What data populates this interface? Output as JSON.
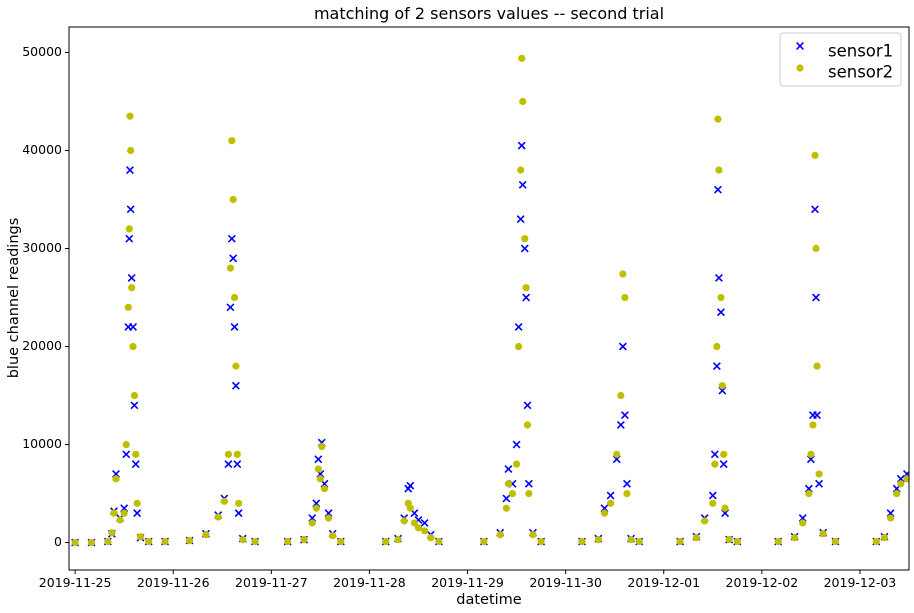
{
  "chart_data": {
    "type": "scatter",
    "title": "matching of 2 sensors values -- second trial",
    "xlabel": "datetime",
    "ylabel": "blue channel readings",
    "xlim": [
      "2019-11-24T22:30",
      "2019-12-03T12:00"
    ],
    "ylim": [
      -2800,
      52600
    ],
    "x_ticks": [
      "2019-11-25",
      "2019-11-26",
      "2019-11-27",
      "2019-11-28",
      "2019-11-29",
      "2019-11-30",
      "2019-12-01",
      "2019-12-02",
      "2019-12-03"
    ],
    "y_ticks": [
      0,
      10000,
      20000,
      30000,
      40000,
      50000
    ],
    "grid": false,
    "legend_position": "top-right",
    "series": [
      {
        "name": "sensor1",
        "marker": "x",
        "color": "#0000ff",
        "points": [
          [
            "2019-11-25T00:00",
            0
          ],
          [
            "2019-11-25T04:00",
            0
          ],
          [
            "2019-11-25T08:00",
            100
          ],
          [
            "2019-11-25T09:00",
            900
          ],
          [
            "2019-11-25T09:30",
            3200
          ],
          [
            "2019-11-25T10:00",
            7000
          ],
          [
            "2019-11-25T11:00",
            2500
          ],
          [
            "2019-11-25T12:00",
            3500
          ],
          [
            "2019-11-25T12:30",
            9000
          ],
          [
            "2019-11-25T13:00",
            22000
          ],
          [
            "2019-11-25T13:15",
            31000
          ],
          [
            "2019-11-25T13:25",
            38000
          ],
          [
            "2019-11-25T13:35",
            34000
          ],
          [
            "2019-11-25T13:50",
            27000
          ],
          [
            "2019-11-25T14:10",
            22000
          ],
          [
            "2019-11-25T14:30",
            14000
          ],
          [
            "2019-11-25T14:50",
            8000
          ],
          [
            "2019-11-25T15:10",
            3000
          ],
          [
            "2019-11-25T16:00",
            500
          ],
          [
            "2019-11-25T18:00",
            100
          ],
          [
            "2019-11-25T22:00",
            100
          ],
          [
            "2019-11-26T04:00",
            200
          ],
          [
            "2019-11-26T08:00",
            900
          ],
          [
            "2019-11-26T11:00",
            2800
          ],
          [
            "2019-11-26T12:30",
            4500
          ],
          [
            "2019-11-26T13:30",
            8000
          ],
          [
            "2019-11-26T14:00",
            24000
          ],
          [
            "2019-11-26T14:20",
            31000
          ],
          [
            "2019-11-26T14:40",
            29000
          ],
          [
            "2019-11-26T15:00",
            22000
          ],
          [
            "2019-11-26T15:20",
            16000
          ],
          [
            "2019-11-26T15:40",
            8000
          ],
          [
            "2019-11-26T16:00",
            3000
          ],
          [
            "2019-11-26T17:00",
            400
          ],
          [
            "2019-11-26T20:00",
            100
          ],
          [
            "2019-11-27T04:00",
            100
          ],
          [
            "2019-11-27T08:00",
            300
          ],
          [
            "2019-11-27T10:00",
            2500
          ],
          [
            "2019-11-27T11:00",
            4000
          ],
          [
            "2019-11-27T11:30",
            8500
          ],
          [
            "2019-11-27T12:00",
            7000
          ],
          [
            "2019-11-27T12:20",
            10200
          ],
          [
            "2019-11-27T13:00",
            6000
          ],
          [
            "2019-11-27T14:00",
            3000
          ],
          [
            "2019-11-27T15:00",
            900
          ],
          [
            "2019-11-27T17:00",
            100
          ],
          [
            "2019-11-28T04:00",
            100
          ],
          [
            "2019-11-28T07:00",
            400
          ],
          [
            "2019-11-28T08:30",
            2500
          ],
          [
            "2019-11-28T09:30",
            5500
          ],
          [
            "2019-11-28T10:00",
            5800
          ],
          [
            "2019-11-28T11:00",
            3000
          ],
          [
            "2019-11-28T12:00",
            2300
          ],
          [
            "2019-11-28T13:30",
            2000
          ],
          [
            "2019-11-28T15:00",
            800
          ],
          [
            "2019-11-28T17:00",
            100
          ],
          [
            "2019-11-29T04:00",
            100
          ],
          [
            "2019-11-29T08:00",
            1000
          ],
          [
            "2019-11-29T09:30",
            4500
          ],
          [
            "2019-11-29T10:00",
            7500
          ],
          [
            "2019-11-29T11:00",
            6000
          ],
          [
            "2019-11-29T12:00",
            10000
          ],
          [
            "2019-11-29T12:30",
            22000
          ],
          [
            "2019-11-29T13:00",
            33000
          ],
          [
            "2019-11-29T13:15",
            40500
          ],
          [
            "2019-11-29T13:30",
            36500
          ],
          [
            "2019-11-29T14:00",
            30000
          ],
          [
            "2019-11-29T14:20",
            25000
          ],
          [
            "2019-11-29T14:40",
            14000
          ],
          [
            "2019-11-29T15:00",
            6000
          ],
          [
            "2019-11-29T16:00",
            1000
          ],
          [
            "2019-11-29T18:00",
            100
          ],
          [
            "2019-11-30T04:00",
            100
          ],
          [
            "2019-11-30T08:00",
            400
          ],
          [
            "2019-11-30T09:30",
            3500
          ],
          [
            "2019-11-30T11:00",
            4800
          ],
          [
            "2019-11-30T12:30",
            8500
          ],
          [
            "2019-11-30T13:30",
            12000
          ],
          [
            "2019-11-30T14:00",
            20000
          ],
          [
            "2019-11-30T14:30",
            13000
          ],
          [
            "2019-11-30T15:00",
            6000
          ],
          [
            "2019-11-30T16:00",
            400
          ],
          [
            "2019-11-30T18:00",
            100
          ],
          [
            "2019-12-01T04:00",
            100
          ],
          [
            "2019-12-01T08:00",
            600
          ],
          [
            "2019-12-01T10:00",
            2500
          ],
          [
            "2019-12-01T12:00",
            4800
          ],
          [
            "2019-12-01T12:30",
            9000
          ],
          [
            "2019-12-01T13:00",
            18000
          ],
          [
            "2019-12-01T13:15",
            36000
          ],
          [
            "2019-12-01T13:30",
            27000
          ],
          [
            "2019-12-01T14:00",
            23500
          ],
          [
            "2019-12-01T14:20",
            15500
          ],
          [
            "2019-12-01T14:40",
            8000
          ],
          [
            "2019-12-01T15:00",
            3000
          ],
          [
            "2019-12-01T16:00",
            300
          ],
          [
            "2019-12-01T18:00",
            100
          ],
          [
            "2019-12-02T04:00",
            100
          ],
          [
            "2019-12-02T08:00",
            600
          ],
          [
            "2019-12-02T10:00",
            2500
          ],
          [
            "2019-12-02T11:30",
            5500
          ],
          [
            "2019-12-02T12:00",
            8500
          ],
          [
            "2019-12-02T12:30",
            13000
          ],
          [
            "2019-12-02T13:00",
            34000
          ],
          [
            "2019-12-02T13:15",
            25000
          ],
          [
            "2019-12-02T13:30",
            13000
          ],
          [
            "2019-12-02T14:00",
            6000
          ],
          [
            "2019-12-02T15:00",
            1000
          ],
          [
            "2019-12-02T18:00",
            100
          ],
          [
            "2019-12-03T04:00",
            100
          ],
          [
            "2019-12-03T06:00",
            600
          ],
          [
            "2019-12-03T07:30",
            3000
          ],
          [
            "2019-12-03T09:00",
            5500
          ],
          [
            "2019-12-03T10:00",
            6500
          ],
          [
            "2019-12-03T11:30",
            7000
          ]
        ]
      },
      {
        "name": "sensor2",
        "marker": "o",
        "color": "#bfbf00",
        "points": [
          [
            "2019-11-25T00:00",
            0
          ],
          [
            "2019-11-25T04:00",
            0
          ],
          [
            "2019-11-25T08:00",
            100
          ],
          [
            "2019-11-25T09:00",
            1000
          ],
          [
            "2019-11-25T09:30",
            3000
          ],
          [
            "2019-11-25T10:00",
            6500
          ],
          [
            "2019-11-25T11:00",
            2300
          ],
          [
            "2019-11-25T12:00",
            3000
          ],
          [
            "2019-11-25T12:30",
            10000
          ],
          [
            "2019-11-25T13:00",
            24000
          ],
          [
            "2019-11-25T13:15",
            32000
          ],
          [
            "2019-11-25T13:25",
            43500
          ],
          [
            "2019-11-25T13:35",
            40000
          ],
          [
            "2019-11-25T13:50",
            26000
          ],
          [
            "2019-11-25T14:10",
            20000
          ],
          [
            "2019-11-25T14:30",
            15000
          ],
          [
            "2019-11-25T14:50",
            9000
          ],
          [
            "2019-11-25T15:10",
            4000
          ],
          [
            "2019-11-25T16:00",
            600
          ],
          [
            "2019-11-25T18:00",
            100
          ],
          [
            "2019-11-25T22:00",
            100
          ],
          [
            "2019-11-26T04:00",
            200
          ],
          [
            "2019-11-26T08:00",
            800
          ],
          [
            "2019-11-26T11:00",
            2600
          ],
          [
            "2019-11-26T12:30",
            4200
          ],
          [
            "2019-11-26T13:30",
            9000
          ],
          [
            "2019-11-26T14:00",
            28000
          ],
          [
            "2019-11-26T14:20",
            41000
          ],
          [
            "2019-11-26T14:40",
            35000
          ],
          [
            "2019-11-26T15:00",
            25000
          ],
          [
            "2019-11-26T15:20",
            18000
          ],
          [
            "2019-11-26T15:40",
            9000
          ],
          [
            "2019-11-26T16:00",
            4000
          ],
          [
            "2019-11-26T17:00",
            300
          ],
          [
            "2019-11-26T20:00",
            100
          ],
          [
            "2019-11-27T04:00",
            100
          ],
          [
            "2019-11-27T08:00",
            300
          ],
          [
            "2019-11-27T10:00",
            2000
          ],
          [
            "2019-11-27T11:00",
            3500
          ],
          [
            "2019-11-27T11:30",
            7500
          ],
          [
            "2019-11-27T12:00",
            6500
          ],
          [
            "2019-11-27T12:20",
            9800
          ],
          [
            "2019-11-27T13:00",
            5500
          ],
          [
            "2019-11-27T14:00",
            2500
          ],
          [
            "2019-11-27T15:00",
            700
          ],
          [
            "2019-11-27T17:00",
            100
          ],
          [
            "2019-11-28T04:00",
            100
          ],
          [
            "2019-11-28T07:00",
            300
          ],
          [
            "2019-11-28T08:30",
            2200
          ],
          [
            "2019-11-28T09:30",
            4000
          ],
          [
            "2019-11-28T10:00",
            3500
          ],
          [
            "2019-11-28T11:00",
            2000
          ],
          [
            "2019-11-28T12:00",
            1500
          ],
          [
            "2019-11-28T13:30",
            1200
          ],
          [
            "2019-11-28T15:00",
            500
          ],
          [
            "2019-11-28T17:00",
            100
          ],
          [
            "2019-11-29T04:00",
            100
          ],
          [
            "2019-11-29T08:00",
            800
          ],
          [
            "2019-11-29T09:30",
            3500
          ],
          [
            "2019-11-29T10:00",
            6000
          ],
          [
            "2019-11-29T11:00",
            5000
          ],
          [
            "2019-11-29T12:00",
            8000
          ],
          [
            "2019-11-29T12:30",
            20000
          ],
          [
            "2019-11-29T13:00",
            38000
          ],
          [
            "2019-11-29T13:15",
            49400
          ],
          [
            "2019-11-29T13:30",
            45000
          ],
          [
            "2019-11-29T14:00",
            31000
          ],
          [
            "2019-11-29T14:20",
            26000
          ],
          [
            "2019-11-29T14:40",
            12000
          ],
          [
            "2019-11-29T15:00",
            5000
          ],
          [
            "2019-11-29T16:00",
            800
          ],
          [
            "2019-11-29T18:00",
            100
          ],
          [
            "2019-11-30T04:00",
            100
          ],
          [
            "2019-11-30T08:00",
            300
          ],
          [
            "2019-11-30T09:30",
            3000
          ],
          [
            "2019-11-30T11:00",
            4000
          ],
          [
            "2019-11-30T12:30",
            9000
          ],
          [
            "2019-11-30T13:30",
            15000
          ],
          [
            "2019-11-30T14:00",
            27400
          ],
          [
            "2019-11-30T14:30",
            25000
          ],
          [
            "2019-11-30T15:00",
            5000
          ],
          [
            "2019-11-30T16:00",
            300
          ],
          [
            "2019-11-30T18:00",
            100
          ],
          [
            "2019-12-01T04:00",
            100
          ],
          [
            "2019-12-01T08:00",
            500
          ],
          [
            "2019-12-01T10:00",
            2200
          ],
          [
            "2019-12-01T12:00",
            4000
          ],
          [
            "2019-12-01T12:30",
            8000
          ],
          [
            "2019-12-01T13:00",
            20000
          ],
          [
            "2019-12-01T13:15",
            43200
          ],
          [
            "2019-12-01T13:30",
            38000
          ],
          [
            "2019-12-01T14:00",
            25000
          ],
          [
            "2019-12-01T14:20",
            16000
          ],
          [
            "2019-12-01T14:40",
            9000
          ],
          [
            "2019-12-01T15:00",
            3500
          ],
          [
            "2019-12-01T16:00",
            300
          ],
          [
            "2019-12-01T18:00",
            100
          ],
          [
            "2019-12-02T04:00",
            100
          ],
          [
            "2019-12-02T08:00",
            500
          ],
          [
            "2019-12-02T10:00",
            2000
          ],
          [
            "2019-12-02T11:30",
            5000
          ],
          [
            "2019-12-02T12:00",
            9000
          ],
          [
            "2019-12-02T12:30",
            12000
          ],
          [
            "2019-12-02T13:00",
            39500
          ],
          [
            "2019-12-02T13:15",
            30000
          ],
          [
            "2019-12-02T13:30",
            18000
          ],
          [
            "2019-12-02T14:00",
            7000
          ],
          [
            "2019-12-02T15:00",
            900
          ],
          [
            "2019-12-02T18:00",
            100
          ],
          [
            "2019-12-03T04:00",
            100
          ],
          [
            "2019-12-03T06:00",
            500
          ],
          [
            "2019-12-03T07:30",
            2500
          ],
          [
            "2019-12-03T09:00",
            5000
          ],
          [
            "2019-12-03T10:00",
            6000
          ],
          [
            "2019-12-03T11:30",
            6500
          ]
        ]
      }
    ]
  }
}
